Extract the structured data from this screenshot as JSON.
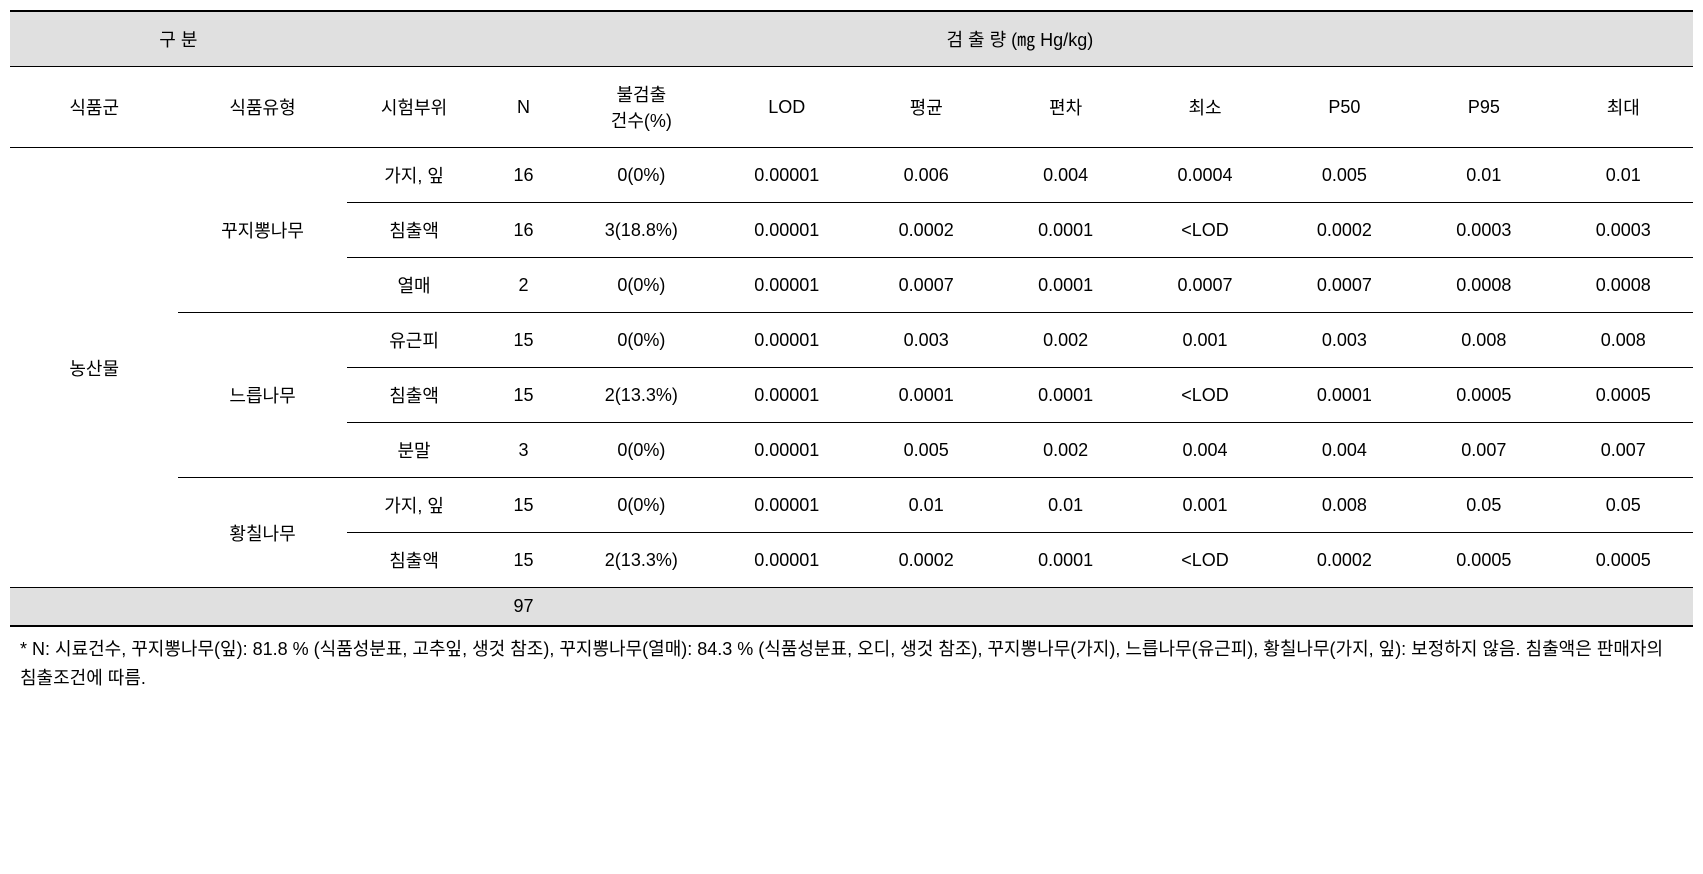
{
  "header": {
    "group_label": "구 분",
    "detect_label": "검 출 량 (㎎ Hg/kg)",
    "col_food_group": "식품군",
    "col_food_type": "식품유형",
    "col_part": "시험부위",
    "col_n": "N",
    "col_nd": "불검출\n건수(%)",
    "col_lod": "LOD",
    "col_mean": "평균",
    "col_sd": "편차",
    "col_min": "최소",
    "col_p50": "P50",
    "col_p95": "P95",
    "col_max": "최대"
  },
  "body": {
    "food_group": "농산물",
    "types": [
      {
        "name": "꾸지뽕나무",
        "rows": [
          {
            "part": "가지, 잎",
            "n": "16",
            "nd": "0(0%)",
            "lod": "0.00001",
            "mean": "0.006",
            "sd": "0.004",
            "min": "0.0004",
            "p50": "0.005",
            "p95": "0.01",
            "max": "0.01"
          },
          {
            "part": "침출액",
            "n": "16",
            "nd": "3(18.8%)",
            "lod": "0.00001",
            "mean": "0.0002",
            "sd": "0.0001",
            "min": "<LOD",
            "p50": "0.0002",
            "p95": "0.0003",
            "max": "0.0003"
          },
          {
            "part": "열매",
            "n": "2",
            "nd": "0(0%)",
            "lod": "0.00001",
            "mean": "0.0007",
            "sd": "0.0001",
            "min": "0.0007",
            "p50": "0.0007",
            "p95": "0.0008",
            "max": "0.0008"
          }
        ]
      },
      {
        "name": "느릅나무",
        "rows": [
          {
            "part": "유근피",
            "n": "15",
            "nd": "0(0%)",
            "lod": "0.00001",
            "mean": "0.003",
            "sd": "0.002",
            "min": "0.001",
            "p50": "0.003",
            "p95": "0.008",
            "max": "0.008"
          },
          {
            "part": "침출액",
            "n": "15",
            "nd": "2(13.3%)",
            "lod": "0.00001",
            "mean": "0.0001",
            "sd": "0.0001",
            "min": "<LOD",
            "p50": "0.0001",
            "p95": "0.0005",
            "max": "0.0005"
          },
          {
            "part": "분말",
            "n": "3",
            "nd": "0(0%)",
            "lod": "0.00001",
            "mean": "0.005",
            "sd": "0.002",
            "min": "0.004",
            "p50": "0.004",
            "p95": "0.007",
            "max": "0.007"
          }
        ]
      },
      {
        "name": "황칠나무",
        "rows": [
          {
            "part": "가지, 잎",
            "n": "15",
            "nd": "0(0%)",
            "lod": "0.00001",
            "mean": "0.01",
            "sd": "0.01",
            "min": "0.001",
            "p50": "0.008",
            "p95": "0.05",
            "max": "0.05"
          },
          {
            "part": "침출액",
            "n": "15",
            "nd": "2(13.3%)",
            "lod": "0.00001",
            "mean": "0.0002",
            "sd": "0.0001",
            "min": "<LOD",
            "p50": "0.0002",
            "p95": "0.0005",
            "max": "0.0005"
          }
        ]
      }
    ],
    "total_n": "97"
  },
  "footnote": "* N: 시료건수, 꾸지뽕나무(잎): 81.8 % (식품성분표, 고추잎, 생것 참조), 꾸지뽕나무(열매): 84.3 % (식품성분표, 오디, 생것 참조), 꾸지뽕나무(가지), 느릅나무(유근피), 황칠나무(가지, 잎): 보정하지 않음. 침출액은 판매자의 침출조건에 따름."
}
